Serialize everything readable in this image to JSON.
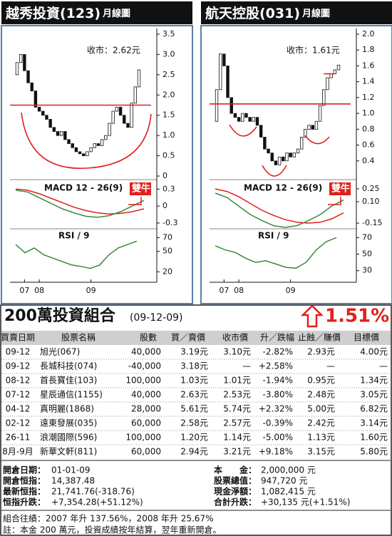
{
  "charts": [
    {
      "title": "越秀投資(123)",
      "subtitle": "月線圖",
      "close_label": "收市：2.62元",
      "ylim": [
        0,
        3.5
      ],
      "yticks": [
        {
          "value": 3.5,
          "label": "3.5"
        },
        {
          "value": 3,
          "label": "3.0"
        },
        2.5,
        {
          "value": 2,
          "label": "2.0"
        },
        1.5,
        {
          "value": 1,
          "label": "1.0"
        },
        0.5,
        0
      ],
      "open": [
        2.5,
        2.8,
        3.0,
        2.6,
        2.3,
        2.1,
        1.7,
        1.6,
        1.5,
        1.4,
        1.2,
        1.1,
        1.0,
        1.1,
        0.9,
        0.8,
        0.7,
        0.6,
        0.55,
        0.5,
        0.6,
        0.7,
        0.8,
        0.75,
        0.9,
        1.0,
        1.3,
        1.6,
        1.7,
        1.5,
        1.3,
        1.2,
        1.8,
        2.2
      ],
      "close": [
        2.8,
        3.0,
        2.6,
        2.3,
        2.1,
        1.7,
        1.6,
        1.5,
        1.4,
        1.2,
        1.1,
        1.0,
        1.1,
        0.9,
        0.8,
        0.7,
        0.6,
        0.55,
        0.5,
        0.6,
        0.7,
        0.8,
        0.75,
        0.9,
        1.0,
        1.3,
        1.6,
        1.7,
        1.5,
        1.3,
        1.2,
        1.8,
        2.2,
        2.62
      ],
      "red_lines": [
        1.75
      ],
      "macd_label": "MACD 12 - 26(9)",
      "badge": "雙牛",
      "macd_ylim": [
        -0.39,
        0.43
      ],
      "macd_yticks": [
        0.3,
        0,
        -0.3
      ],
      "macd": [
        0.28,
        0.25,
        0.15,
        0.05,
        -0.05,
        -0.12,
        -0.18,
        -0.2,
        -0.17,
        -0.1,
        0.0,
        0.1
      ],
      "signal": [
        0.3,
        0.28,
        0.22,
        0.14,
        0.06,
        -0.02,
        -0.08,
        -0.12,
        -0.14,
        -0.13,
        -0.1,
        -0.05
      ],
      "rsi_label": "RSI / 9",
      "rsi_ylim": [
        12,
        80
      ],
      "rsi_yticks": [
        70,
        50,
        20
      ],
      "rsi": [
        60,
        48,
        55,
        45,
        40,
        35,
        30,
        28,
        25,
        30,
        45,
        55,
        60,
        65
      ],
      "xlabels": [
        {
          "value": 2,
          "label": "07"
        },
        {
          "value": 6,
          "label": "08"
        },
        {
          "value": 20,
          "label": "09"
        }
      ]
    },
    {
      "title": "航天控股(031)",
      "subtitle": "月線圖",
      "close_label": "收市：1.61元",
      "ylim": [
        0.2,
        2.0
      ],
      "yticks": [
        {
          "value": 2,
          "label": "2.0"
        },
        1.8,
        1.6,
        1.4,
        1.2,
        {
          "value": 1,
          "label": "1.0"
        },
        0.8,
        0.6,
        0.4
      ],
      "open": [
        0.9,
        1.3,
        1.75,
        1.6,
        1.2,
        1.0,
        0.95,
        0.9,
        1.0,
        0.95,
        0.9,
        0.95,
        0.85,
        0.7,
        0.55,
        0.5,
        0.4,
        0.35,
        0.45,
        0.4,
        0.5,
        0.45,
        0.5,
        0.55,
        0.7,
        0.8,
        0.85,
        0.8,
        0.9,
        1.1,
        1.3,
        1.45,
        1.5,
        1.55
      ],
      "close": [
        1.3,
        1.75,
        1.6,
        1.2,
        1.0,
        0.95,
        0.9,
        1.0,
        0.95,
        0.9,
        0.95,
        0.85,
        0.7,
        0.55,
        0.5,
        0.4,
        0.35,
        0.45,
        0.4,
        0.5,
        0.45,
        0.5,
        0.55,
        0.7,
        0.8,
        0.85,
        0.8,
        0.9,
        1.1,
        1.3,
        1.45,
        1.5,
        1.55,
        1.61
      ],
      "red_lines": [
        1.12,
        1.5
      ],
      "macd_label": "MACD 12 - 26(9)",
      "badge": "雙牛",
      "macd_ylim": [
        -0.208,
        0.333
      ],
      "macd_yticks": [
        0.25,
        {
          "value": 0.1,
          "label": "0.10"
        },
        -0.15
      ],
      "macd": [
        0.2,
        0.15,
        0.05,
        -0.05,
        -0.12,
        -0.18,
        -0.2,
        -0.18,
        -0.12,
        -0.05,
        0.05,
        0.12
      ],
      "signal": [
        0.25,
        0.22,
        0.16,
        0.08,
        0.0,
        -0.06,
        -0.11,
        -0.14,
        -0.15,
        -0.14,
        -0.1,
        -0.03
      ],
      "rsi_label": "RSI / 9",
      "rsi_ylim": [
        22,
        78
      ],
      "rsi_yticks": [
        70,
        50,
        30
      ],
      "rsi": [
        60,
        55,
        52,
        45,
        40,
        42,
        38,
        34,
        33,
        40,
        55,
        65,
        70
      ],
      "xlabels": [
        {
          "value": 2,
          "label": "07"
        },
        {
          "value": 6,
          "label": "08"
        },
        {
          "value": 20,
          "label": "09"
        }
      ]
    }
  ],
  "portfolio": {
    "title": "200萬投資組合",
    "date": "(09-12-09)",
    "change": "1.51%",
    "columns": [
      "買賣日期",
      "股票名稱",
      "股數",
      "買／賣價",
      "收市價",
      "升／跌幅",
      "止蝕／賺價",
      "目標價"
    ],
    "rows": [
      [
        "09-12",
        "旭光(067)",
        "40,000",
        "3.19元",
        "3.10元",
        "-2.82%",
        "2.93元",
        "4.00元"
      ],
      [
        "09-12",
        "長城科技(074)",
        "-40,000",
        "3.18元",
        "—",
        "+2.58%",
        "—",
        "—"
      ],
      [
        "08-12",
        "首長寶佳(103)",
        "100,000",
        "1.03元",
        "1.01元",
        "-1.94%",
        "0.95元",
        "1.34元"
      ],
      [
        "07-12",
        "星辰通信(1155)",
        "40,000",
        "2.63元",
        "2.53元",
        "-3.80%",
        "2.48元",
        "3.05元"
      ],
      [
        "04-12",
        "真明麗(1868)",
        "28,000",
        "5.61元",
        "5.74元",
        "+2.32%",
        "5.00元",
        "6.82元"
      ],
      [
        "02-12",
        "遠東發展(035)",
        "60,000",
        "2.58元",
        "2.57元",
        "-0.39%",
        "2.42元",
        "3.14元"
      ],
      [
        "26-11",
        "浪潮國際(596)",
        "100,000",
        "1.20元",
        "1.14元",
        "-5.00%",
        "1.13元",
        "1.60元"
      ],
      [
        "8月-9月",
        "新華文軒(811)",
        "60,000",
        "2.94元",
        "3.21元",
        "+9.18%",
        "3.15元",
        "5.80元"
      ]
    ],
    "summary": [
      [
        "開倉日期：",
        "01-01-09",
        "本　　金：",
        "2,000,000 元"
      ],
      [
        "開倉恒指：",
        "14,387.48",
        "股票總值：",
        "947,720 元"
      ],
      [
        "最新恒指：",
        "21,741.76(-318.76)",
        "現金淨額：",
        "1,082,415 元"
      ],
      [
        "恒指升跌：",
        "+7,354.28(+51.12%)",
        "合計升跌：",
        "+30,135 元(+1.51%)"
      ]
    ],
    "record": "組合往績：2007 年升 137.56%，2008 年升 25.67%",
    "note": "註：本金 200 萬元，投資成績按年結算，翌年重新開倉。"
  }
}
